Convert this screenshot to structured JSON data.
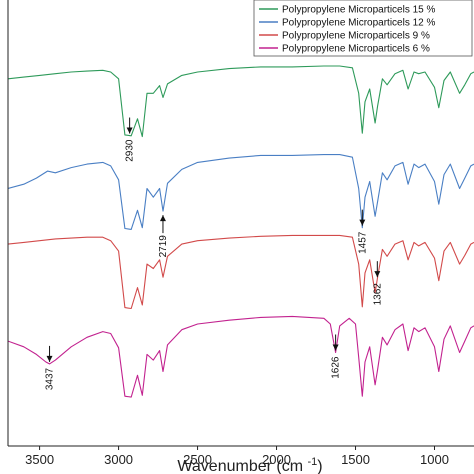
{
  "chart_data": {
    "type": "line",
    "title": "",
    "xlabel": "Wavenumber (cm",
    "xlabel_sup": "-1",
    "xlabel_close": ")",
    "ylabel": "",
    "x_reversed": true,
    "xlim": [
      3700,
      750
    ],
    "xticks": [
      3500,
      3000,
      2500,
      2000,
      1500,
      1000
    ],
    "xtick_labels": [
      "3500",
      "3000",
      "2500",
      "2000",
      "1500",
      "1000"
    ],
    "y_unit": "transmittance (offset per series)",
    "grid": false,
    "legend_position": "top-right",
    "series": [
      {
        "name": "Polypropylene Microparticels 15 %",
        "color": "#2e9a5a",
        "points": [
          [
            3700,
            0.72
          ],
          [
            3600,
            0.74
          ],
          [
            3500,
            0.76
          ],
          [
            3400,
            0.78
          ],
          [
            3300,
            0.8
          ],
          [
            3200,
            0.81
          ],
          [
            3100,
            0.82
          ],
          [
            3050,
            0.8
          ],
          [
            3000,
            0.72
          ],
          [
            2960,
            0.06
          ],
          [
            2920,
            0.05
          ],
          [
            2880,
            0.25
          ],
          [
            2850,
            0.04
          ],
          [
            2820,
            0.55
          ],
          [
            2780,
            0.55
          ],
          [
            2740,
            0.64
          ],
          [
            2719,
            0.5
          ],
          [
            2690,
            0.66
          ],
          [
            2600,
            0.76
          ],
          [
            2500,
            0.8
          ],
          [
            2300,
            0.84
          ],
          [
            2100,
            0.86
          ],
          [
            1900,
            0.86
          ],
          [
            1700,
            0.87
          ],
          [
            1600,
            0.87
          ],
          [
            1520,
            0.85
          ],
          [
            1480,
            0.55
          ],
          [
            1457,
            0.08
          ],
          [
            1440,
            0.45
          ],
          [
            1410,
            0.6
          ],
          [
            1376,
            0.2
          ],
          [
            1360,
            0.4
          ],
          [
            1330,
            0.72
          ],
          [
            1300,
            0.65
          ],
          [
            1250,
            0.78
          ],
          [
            1200,
            0.82
          ],
          [
            1167,
            0.6
          ],
          [
            1130,
            0.8
          ],
          [
            1100,
            0.78
          ],
          [
            1060,
            0.8
          ],
          [
            1000,
            0.62
          ],
          [
            973,
            0.38
          ],
          [
            940,
            0.7
          ],
          [
            900,
            0.8
          ],
          [
            841,
            0.55
          ],
          [
            808,
            0.65
          ],
          [
            770,
            0.78
          ],
          [
            750,
            0.8
          ]
        ]
      },
      {
        "name": "Polypropylene Microparticels 12 %",
        "color": "#4a7fc4",
        "points": [
          [
            3700,
            0.5
          ],
          [
            3600,
            0.55
          ],
          [
            3520,
            0.62
          ],
          [
            3450,
            0.7
          ],
          [
            3400,
            0.68
          ],
          [
            3300,
            0.74
          ],
          [
            3200,
            0.78
          ],
          [
            3100,
            0.8
          ],
          [
            3050,
            0.76
          ],
          [
            3000,
            0.6
          ],
          [
            2960,
            0.04
          ],
          [
            2920,
            0.03
          ],
          [
            2880,
            0.25
          ],
          [
            2850,
            0.05
          ],
          [
            2820,
            0.5
          ],
          [
            2780,
            0.4
          ],
          [
            2740,
            0.5
          ],
          [
            2719,
            0.24
          ],
          [
            2690,
            0.56
          ],
          [
            2600,
            0.72
          ],
          [
            2500,
            0.8
          ],
          [
            2300,
            0.85
          ],
          [
            2100,
            0.88
          ],
          [
            1900,
            0.88
          ],
          [
            1700,
            0.89
          ],
          [
            1600,
            0.89
          ],
          [
            1520,
            0.86
          ],
          [
            1480,
            0.5
          ],
          [
            1457,
            0.05
          ],
          [
            1440,
            0.4
          ],
          [
            1410,
            0.58
          ],
          [
            1376,
            0.18
          ],
          [
            1360,
            0.35
          ],
          [
            1330,
            0.68
          ],
          [
            1300,
            0.6
          ],
          [
            1250,
            0.76
          ],
          [
            1200,
            0.8
          ],
          [
            1167,
            0.55
          ],
          [
            1130,
            0.78
          ],
          [
            1100,
            0.74
          ],
          [
            1060,
            0.78
          ],
          [
            1000,
            0.58
          ],
          [
            973,
            0.32
          ],
          [
            940,
            0.66
          ],
          [
            900,
            0.78
          ],
          [
            841,
            0.5
          ],
          [
            808,
            0.62
          ],
          [
            770,
            0.76
          ],
          [
            750,
            0.78
          ]
        ]
      },
      {
        "name": "Polypropylene Microparticels 9 %",
        "color": "#d24a4a",
        "points": [
          [
            3700,
            0.78
          ],
          [
            3600,
            0.8
          ],
          [
            3500,
            0.82
          ],
          [
            3400,
            0.84
          ],
          [
            3300,
            0.85
          ],
          [
            3200,
            0.86
          ],
          [
            3100,
            0.86
          ],
          [
            3050,
            0.82
          ],
          [
            3000,
            0.7
          ],
          [
            2960,
            0.05
          ],
          [
            2920,
            0.04
          ],
          [
            2880,
            0.28
          ],
          [
            2850,
            0.08
          ],
          [
            2820,
            0.55
          ],
          [
            2780,
            0.5
          ],
          [
            2740,
            0.6
          ],
          [
            2719,
            0.4
          ],
          [
            2690,
            0.64
          ],
          [
            2600,
            0.78
          ],
          [
            2500,
            0.82
          ],
          [
            2300,
            0.85
          ],
          [
            2100,
            0.87
          ],
          [
            1900,
            0.88
          ],
          [
            1700,
            0.88
          ],
          [
            1600,
            0.88
          ],
          [
            1520,
            0.86
          ],
          [
            1480,
            0.55
          ],
          [
            1457,
            0.06
          ],
          [
            1440,
            0.45
          ],
          [
            1410,
            0.6
          ],
          [
            1376,
            0.22
          ],
          [
            1360,
            0.4
          ],
          [
            1330,
            0.72
          ],
          [
            1300,
            0.64
          ],
          [
            1250,
            0.78
          ],
          [
            1200,
            0.82
          ],
          [
            1167,
            0.6
          ],
          [
            1130,
            0.8
          ],
          [
            1100,
            0.76
          ],
          [
            1060,
            0.8
          ],
          [
            1000,
            0.62
          ],
          [
            973,
            0.36
          ],
          [
            940,
            0.7
          ],
          [
            900,
            0.8
          ],
          [
            841,
            0.55
          ],
          [
            808,
            0.65
          ],
          [
            770,
            0.78
          ],
          [
            750,
            0.8
          ]
        ]
      },
      {
        "name": "Polypropylene Microparticels 6 %",
        "color": "#c2228f",
        "points": [
          [
            3700,
            0.62
          ],
          [
            3600,
            0.56
          ],
          [
            3520,
            0.48
          ],
          [
            3460,
            0.4
          ],
          [
            3437,
            0.38
          ],
          [
            3400,
            0.42
          ],
          [
            3300,
            0.56
          ],
          [
            3200,
            0.66
          ],
          [
            3100,
            0.72
          ],
          [
            3050,
            0.7
          ],
          [
            3000,
            0.55
          ],
          [
            2960,
            0.04
          ],
          [
            2920,
            0.03
          ],
          [
            2880,
            0.26
          ],
          [
            2850,
            0.05
          ],
          [
            2820,
            0.48
          ],
          [
            2780,
            0.42
          ],
          [
            2740,
            0.52
          ],
          [
            2719,
            0.3
          ],
          [
            2690,
            0.58
          ],
          [
            2600,
            0.74
          ],
          [
            2500,
            0.8
          ],
          [
            2300,
            0.84
          ],
          [
            2100,
            0.87
          ],
          [
            1900,
            0.88
          ],
          [
            1700,
            0.86
          ],
          [
            1660,
            0.8
          ],
          [
            1626,
            0.5
          ],
          [
            1600,
            0.78
          ],
          [
            1540,
            0.86
          ],
          [
            1500,
            0.8
          ],
          [
            1480,
            0.45
          ],
          [
            1457,
            0.04
          ],
          [
            1440,
            0.4
          ],
          [
            1410,
            0.56
          ],
          [
            1376,
            0.16
          ],
          [
            1360,
            0.32
          ],
          [
            1330,
            0.66
          ],
          [
            1300,
            0.58
          ],
          [
            1250,
            0.74
          ],
          [
            1200,
            0.8
          ],
          [
            1167,
            0.52
          ],
          [
            1130,
            0.76
          ],
          [
            1100,
            0.72
          ],
          [
            1060,
            0.76
          ],
          [
            1000,
            0.56
          ],
          [
            973,
            0.3
          ],
          [
            940,
            0.64
          ],
          [
            900,
            0.78
          ],
          [
            841,
            0.5
          ],
          [
            808,
            0.62
          ],
          [
            770,
            0.76
          ],
          [
            750,
            0.78
          ]
        ]
      }
    ],
    "annotations": [
      {
        "label": "2930",
        "x": 2930,
        "series": 0,
        "dir": "down"
      },
      {
        "label": "2719",
        "x": 2719,
        "series": 1,
        "dir": "up"
      },
      {
        "label": "1457",
        "x": 1457,
        "series": 1,
        "dir": "down"
      },
      {
        "label": "1362",
        "x": 1362,
        "series": 2,
        "dir": "down"
      },
      {
        "label": "3437",
        "x": 3437,
        "series": 3,
        "dir": "down"
      },
      {
        "label": "1626",
        "x": 1626,
        "series": 3,
        "dir": "down"
      }
    ]
  }
}
